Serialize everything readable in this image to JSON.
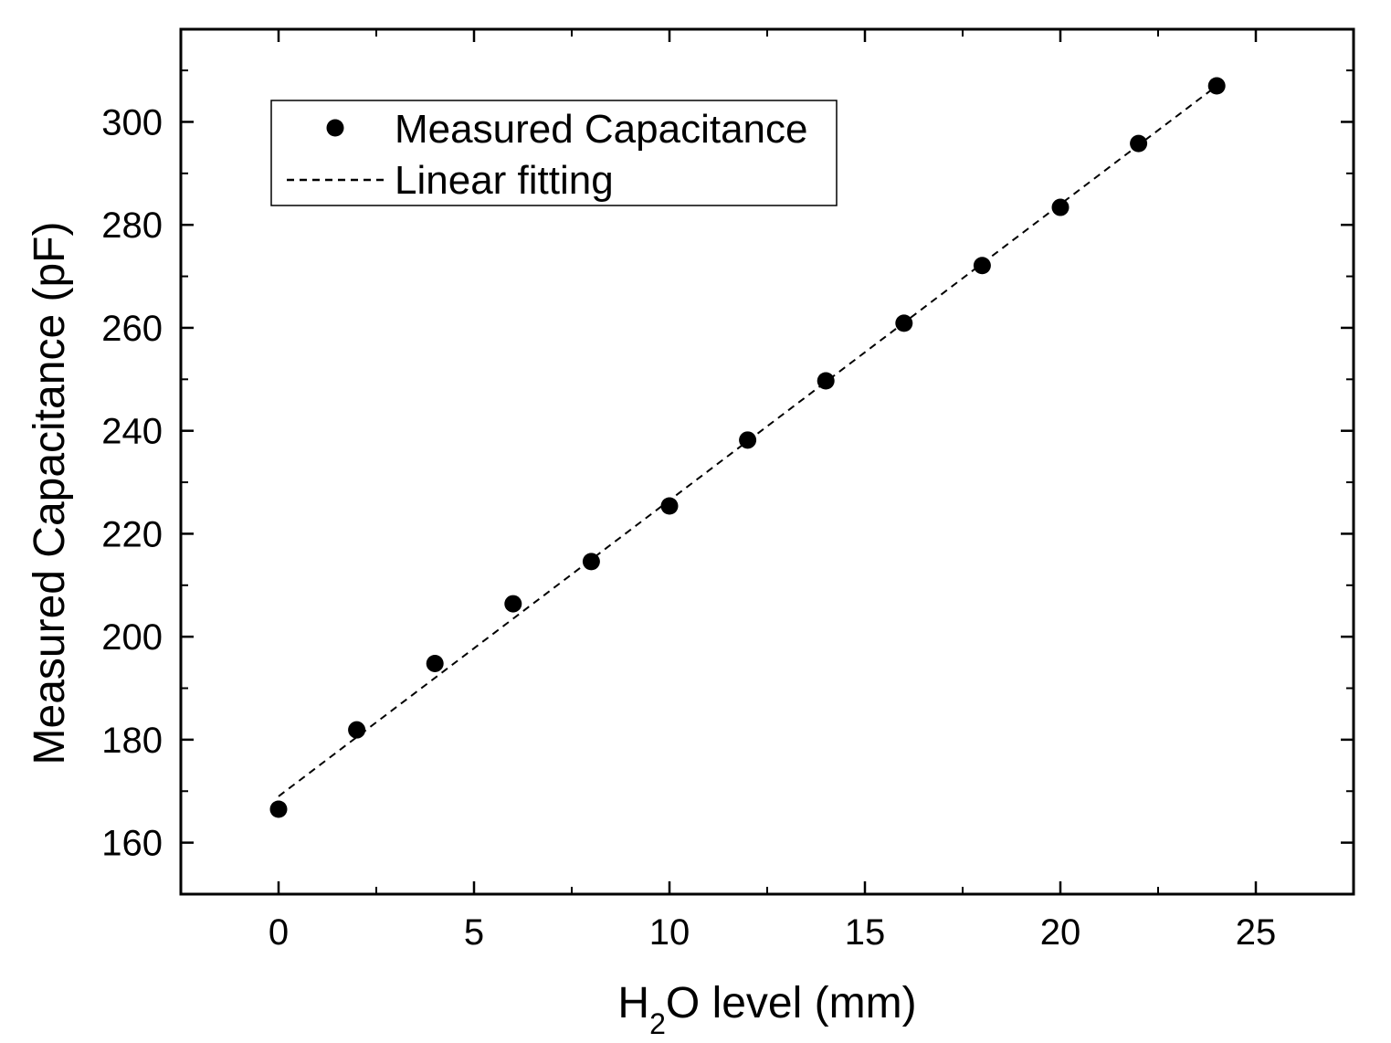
{
  "chart_data": {
    "type": "scatter",
    "title": "",
    "xlabel": {
      "prefix": "H",
      "subscript": "2",
      "suffix": "O level (mm)"
    },
    "ylabel": "Measured Capacitance (pF)",
    "xlim": [
      -2.5,
      27.5
    ],
    "ylim": [
      150,
      318
    ],
    "xticks": [
      0,
      5,
      10,
      15,
      20,
      25
    ],
    "yticks": [
      160,
      180,
      200,
      220,
      240,
      260,
      280,
      300
    ],
    "legend_position": "top-left",
    "series": [
      {
        "name": "Measured Capacitance",
        "kind": "scatter",
        "color": "#000000",
        "x": [
          0,
          2,
          4,
          6,
          8,
          10,
          12,
          14,
          16,
          18,
          20,
          22,
          24
        ],
        "y": [
          166.5,
          181.9,
          194.8,
          206.4,
          214.6,
          225.4,
          238.2,
          249.7,
          260.9,
          272.1,
          283.4,
          295.8,
          307.0
        ]
      },
      {
        "name": "Linear fitting",
        "kind": "line",
        "style": "dashed",
        "color": "#000000",
        "x": [
          0,
          24
        ],
        "y": [
          169.0,
          307.0
        ]
      }
    ]
  }
}
